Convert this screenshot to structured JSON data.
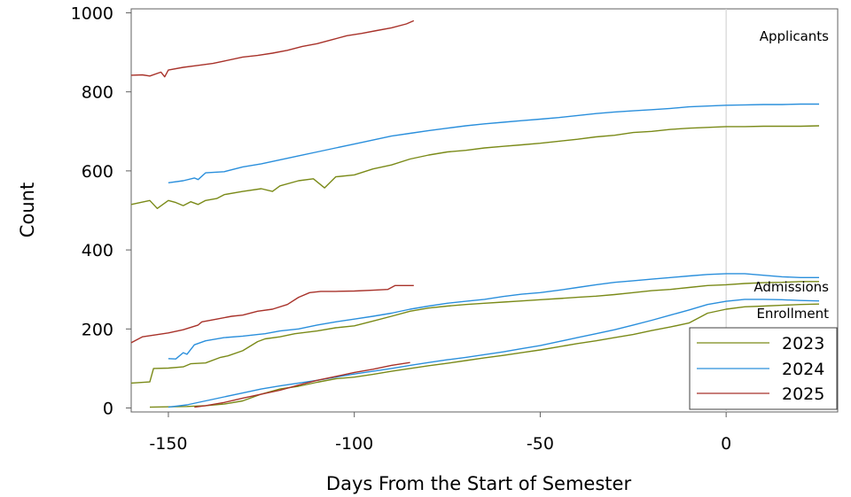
{
  "chart_data": {
    "type": "line",
    "xlabel": "Days From the Start of Semester",
    "ylabel": "Count",
    "xlim": [
      -160,
      30
    ],
    "ylim": [
      -10,
      1010
    ],
    "xticks": [
      -150,
      -100,
      -50,
      0
    ],
    "xtick_labels": [
      "-150",
      "-100",
      "-50",
      "0"
    ],
    "yticks": [
      0,
      200,
      400,
      600,
      800,
      1000
    ],
    "ytick_labels": [
      "0",
      "200",
      "400",
      "600",
      "800",
      "1000"
    ],
    "reference_line_x": 0,
    "colors": {
      "2023": "#7a8a18",
      "2024": "#2a8fdc",
      "2025": "#a8322a"
    },
    "legend": {
      "placement": "bottom-right",
      "entries": [
        "2023",
        "2024",
        "2025"
      ]
    },
    "annotations": [
      {
        "text": "Applicants",
        "anchor": "top-right"
      },
      {
        "text": "Admissions",
        "anchor": "right",
        "y": 312
      },
      {
        "text": "Enrollment",
        "anchor": "right",
        "y": 243
      }
    ],
    "series": [
      {
        "name": "2023",
        "metric": "Applicants",
        "x": [
          -160,
          -155,
          -153,
          -150,
          -148,
          -146,
          -144,
          -142,
          -140,
          -137,
          -135,
          -130,
          -125,
          -122,
          -120,
          -115,
          -111,
          -108,
          -105,
          -100,
          -95,
          -90,
          -85,
          -80,
          -75,
          -70,
          -65,
          -60,
          -55,
          -50,
          -45,
          -40,
          -35,
          -30,
          -25,
          -20,
          -15,
          -10,
          -5,
          0,
          5,
          10,
          15,
          20,
          25
        ],
        "y": [
          515,
          525,
          505,
          525,
          520,
          512,
          522,
          515,
          525,
          530,
          540,
          548,
          555,
          548,
          562,
          575,
          580,
          557,
          585,
          590,
          605,
          615,
          630,
          640,
          648,
          652,
          658,
          662,
          666,
          670,
          675,
          680,
          686,
          690,
          697,
          700,
          705,
          708,
          710,
          712,
          712,
          713,
          713,
          713,
          714
        ]
      },
      {
        "name": "2023",
        "metric": "Admissions",
        "x": [
          -160,
          -155,
          -154,
          -150,
          -146,
          -144,
          -140,
          -136,
          -134,
          -130,
          -126,
          -124,
          -120,
          -116,
          -110,
          -105,
          -100,
          -95,
          -90,
          -85,
          -80,
          -75,
          -70,
          -65,
          -60,
          -55,
          -50,
          -45,
          -40,
          -35,
          -30,
          -25,
          -20,
          -15,
          -10,
          -5,
          0,
          5,
          10,
          15,
          20,
          25
        ],
        "y": [
          63,
          66,
          100,
          101,
          104,
          112,
          114,
          128,
          132,
          145,
          168,
          175,
          180,
          188,
          195,
          203,
          208,
          220,
          232,
          245,
          253,
          258,
          262,
          265,
          268,
          271,
          274,
          277,
          280,
          283,
          287,
          292,
          297,
          300,
          305,
          310,
          312,
          315,
          317,
          318,
          320,
          320
        ]
      },
      {
        "name": "2023",
        "metric": "Enrollment",
        "x": [
          -155,
          -150,
          -145,
          -140,
          -135,
          -130,
          -125,
          -120,
          -115,
          -110,
          -105,
          -100,
          -95,
          -90,
          -85,
          -80,
          -75,
          -70,
          -65,
          -60,
          -55,
          -50,
          -45,
          -40,
          -35,
          -30,
          -25,
          -20,
          -15,
          -10,
          -5,
          0,
          5,
          10,
          15,
          20,
          25
        ],
        "y": [
          2,
          3,
          4,
          6,
          10,
          18,
          35,
          48,
          55,
          65,
          74,
          78,
          85,
          93,
          100,
          107,
          113,
          120,
          127,
          133,
          140,
          147,
          155,
          163,
          170,
          178,
          186,
          196,
          205,
          215,
          240,
          250,
          256,
          258,
          260,
          262,
          263
        ]
      },
      {
        "name": "2024",
        "metric": "Applicants",
        "x": [
          -150,
          -146,
          -143,
          -142,
          -140,
          -135,
          -130,
          -125,
          -120,
          -115,
          -110,
          -105,
          -100,
          -95,
          -90,
          -85,
          -80,
          -75,
          -70,
          -65,
          -60,
          -55,
          -50,
          -45,
          -40,
          -35,
          -30,
          -25,
          -20,
          -15,
          -10,
          -5,
          0,
          5,
          10,
          15,
          20,
          25
        ],
        "y": [
          570,
          575,
          582,
          578,
          595,
          598,
          610,
          618,
          628,
          638,
          648,
          658,
          668,
          678,
          688,
          695,
          702,
          708,
          714,
          719,
          723,
          727,
          731,
          735,
          740,
          745,
          749,
          752,
          755,
          758,
          762,
          764,
          766,
          767,
          768,
          768,
          769,
          769
        ]
      },
      {
        "name": "2024",
        "metric": "Admissions",
        "x": [
          -150,
          -148,
          -146,
          -145,
          -143,
          -140,
          -135,
          -130,
          -126,
          -124,
          -120,
          -115,
          -110,
          -105,
          -100,
          -95,
          -90,
          -85,
          -80,
          -75,
          -70,
          -65,
          -60,
          -55,
          -50,
          -45,
          -40,
          -35,
          -30,
          -25,
          -20,
          -15,
          -10,
          -5,
          0,
          5,
          10,
          15,
          20,
          25
        ],
        "y": [
          125,
          124,
          140,
          136,
          160,
          170,
          178,
          182,
          186,
          188,
          195,
          200,
          210,
          218,
          225,
          232,
          240,
          250,
          258,
          265,
          270,
          275,
          282,
          288,
          292,
          298,
          305,
          312,
          318,
          322,
          326,
          330,
          334,
          338,
          340,
          340,
          336,
          332,
          330,
          330
        ]
      },
      {
        "name": "2024",
        "metric": "Enrollment",
        "x": [
          -150,
          -145,
          -140,
          -135,
          -130,
          -125,
          -120,
          -115,
          -110,
          -105,
          -100,
          -95,
          -90,
          -85,
          -80,
          -75,
          -70,
          -65,
          -60,
          -55,
          -50,
          -45,
          -40,
          -35,
          -30,
          -25,
          -20,
          -15,
          -10,
          -5,
          0,
          5,
          10,
          15,
          20,
          25
        ],
        "y": [
          2,
          8,
          18,
          28,
          38,
          48,
          56,
          63,
          70,
          78,
          86,
          93,
          100,
          108,
          115,
          122,
          128,
          135,
          142,
          150,
          158,
          168,
          178,
          188,
          198,
          210,
          222,
          235,
          248,
          262,
          270,
          275,
          275,
          274,
          272,
          271
        ]
      },
      {
        "name": "2025",
        "metric": "Applicants",
        "x": [
          -160,
          -157,
          -155,
          -152,
          -151,
          -150,
          -146,
          -142,
          -138,
          -135,
          -130,
          -126,
          -122,
          -118,
          -114,
          -110,
          -106,
          -102,
          -98,
          -94,
          -90,
          -86,
          -84
        ],
        "y": [
          842,
          843,
          840,
          850,
          838,
          855,
          862,
          867,
          872,
          878,
          888,
          892,
          898,
          905,
          915,
          922,
          932,
          942,
          948,
          955,
          962,
          972,
          980
        ]
      },
      {
        "name": "2025",
        "metric": "Admissions",
        "x": [
          -160,
          -157,
          -155,
          -150,
          -146,
          -142,
          -141,
          -137,
          -133,
          -130,
          -126,
          -122,
          -118,
          -115,
          -112,
          -109,
          -105,
          -100,
          -95,
          -91,
          -89,
          -84
        ],
        "y": [
          165,
          180,
          183,
          190,
          198,
          210,
          218,
          225,
          232,
          235,
          245,
          250,
          262,
          280,
          292,
          295,
          295,
          296,
          298,
          300,
          310,
          310
        ]
      },
      {
        "name": "2025",
        "metric": "Enrollment",
        "x": [
          -143,
          -140,
          -135,
          -130,
          -125,
          -120,
          -115,
          -110,
          -105,
          -100,
          -95,
          -90,
          -85
        ],
        "y": [
          2,
          6,
          14,
          25,
          35,
          45,
          58,
          70,
          80,
          90,
          98,
          108,
          115
        ]
      }
    ]
  }
}
